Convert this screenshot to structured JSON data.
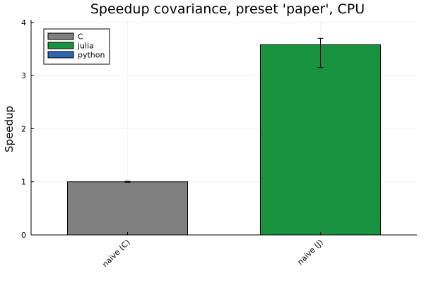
{
  "chart_data": {
    "type": "bar",
    "title": "Speedup covariance, preset 'paper', CPU",
    "xlabel": "",
    "ylabel": "Speedup",
    "categories": [
      "naive (C)",
      "naive (J)"
    ],
    "ylim": [
      0,
      4.05
    ],
    "yticks": [
      0,
      1,
      2,
      3,
      4
    ],
    "grid": true,
    "legend_position": "top-left",
    "series": [
      {
        "name": "C",
        "color": "#808080",
        "values": [
          1.0,
          null
        ],
        "error": [
          [
            0.01,
            0.01
          ],
          null
        ]
      },
      {
        "name": "julia",
        "color": "#1a9340",
        "values": [
          null,
          3.58
        ],
        "error": [
          null,
          [
            0.43,
            0.12
          ]
        ]
      },
      {
        "name": "python",
        "color": "#2c65b1",
        "values": [
          null,
          null
        ],
        "error": [
          null,
          null
        ]
      }
    ]
  }
}
